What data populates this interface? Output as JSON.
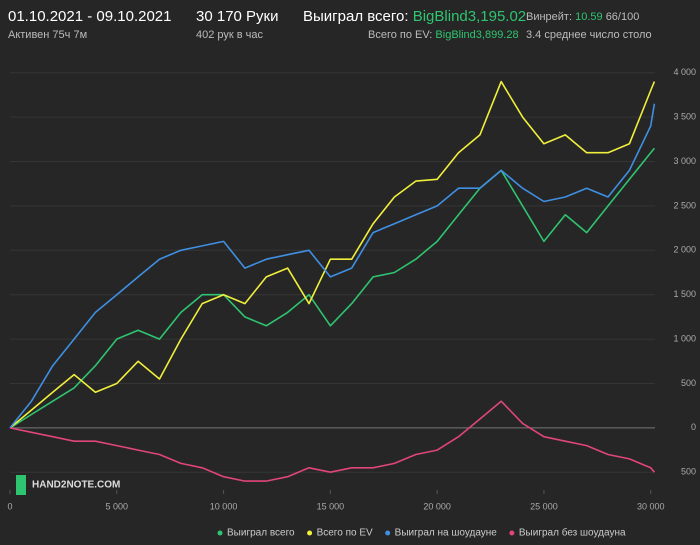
{
  "header": {
    "date_range": "01.10.2021 - 09.10.2021",
    "active": "Активен 75ч 7м",
    "hands": "30 170 Руки",
    "hands_per_hour": "402 рук в час",
    "won_label": "Выиграл всего:",
    "won_value": "BigBlind3,195.02",
    "ev_label": "Всего по EV:",
    "ev_value": "BigBlind3,899.28",
    "winrate_label": "Винрейт:",
    "winrate_value": "10.59",
    "winrate_extra": "66/100",
    "tables": "3.4 среднее число столо",
    "logo": "HAND2NOTE.COM"
  },
  "chart_data": {
    "type": "line",
    "x": [
      0,
      1000,
      2000,
      3000,
      4000,
      5000,
      6000,
      7000,
      8000,
      9000,
      10000,
      11000,
      12000,
      13000,
      14000,
      15000,
      16000,
      17000,
      18000,
      19000,
      20000,
      21000,
      22000,
      23000,
      24000,
      25000,
      26000,
      27000,
      28000,
      29000,
      30000,
      30170
    ],
    "series": [
      {
        "name": "Выиграл всего",
        "color": "#2fc46f",
        "values": [
          0,
          150,
          300,
          450,
          700,
          1000,
          1100,
          1000,
          1300,
          1500,
          1500,
          1250,
          1150,
          1300,
          1500,
          1150,
          1400,
          1700,
          1750,
          1900,
          2100,
          2400,
          2700,
          2900,
          2500,
          2100,
          2400,
          2200,
          2500,
          2800,
          3100,
          3150
        ]
      },
      {
        "name": "Всего по EV",
        "color": "#f0ef3c",
        "values": [
          0,
          200,
          400,
          600,
          400,
          500,
          750,
          550,
          1000,
          1400,
          1500,
          1400,
          1700,
          1800,
          1400,
          1900,
          1900,
          2300,
          2600,
          2780,
          2800,
          3100,
          3300,
          3900,
          3500,
          3200,
          3300,
          3100,
          3100,
          3200,
          3800,
          3900
        ]
      },
      {
        "name": "Выиграл на шоудауне",
        "color": "#3f8fe2",
        "values": [
          0,
          300,
          700,
          1000,
          1300,
          1500,
          1700,
          1900,
          2000,
          2050,
          2100,
          1800,
          1900,
          1950,
          2000,
          1700,
          1800,
          2200,
          2300,
          2400,
          2500,
          2700,
          2700,
          2900,
          2700,
          2550,
          2600,
          2700,
          2600,
          2900,
          3400,
          3650
        ]
      },
      {
        "name": "Выиграл без шоудауна",
        "color": "#e0457b",
        "values": [
          0,
          -50,
          -100,
          -150,
          -150,
          -200,
          -250,
          -300,
          -400,
          -450,
          -550,
          -600,
          -600,
          -550,
          -450,
          -500,
          -450,
          -450,
          -400,
          -300,
          -250,
          -100,
          100,
          300,
          50,
          -100,
          -150,
          -200,
          -300,
          -350,
          -450,
          -500
        ]
      }
    ],
    "xlim": [
      0,
      30200
    ],
    "xticks": [
      0,
      {
        "value": 5000,
        "label": "5 000"
      },
      {
        "value": 10000,
        "label": "10 000"
      },
      {
        "value": 15000,
        "label": "15 000"
      },
      {
        "value": 20000,
        "label": "20 000"
      },
      {
        "value": 25000,
        "label": "25 000"
      },
      {
        "value": 30000,
        "label": "30 000"
      }
    ],
    "ylim": [
      -700,
      4200
    ],
    "yticks": [
      {
        "value": -500,
        "label": "500"
      },
      0,
      500,
      {
        "value": 1000,
        "label": "1 000"
      },
      {
        "value": 1500,
        "label": "1 500"
      },
      {
        "value": 2000,
        "label": "2 000"
      },
      {
        "value": 2500,
        "label": "2 500"
      },
      {
        "value": 3000,
        "label": "3 000"
      },
      {
        "value": 3500,
        "label": "3 500"
      },
      {
        "value": 4000,
        "label": "4 000"
      }
    ],
    "grid": true
  }
}
